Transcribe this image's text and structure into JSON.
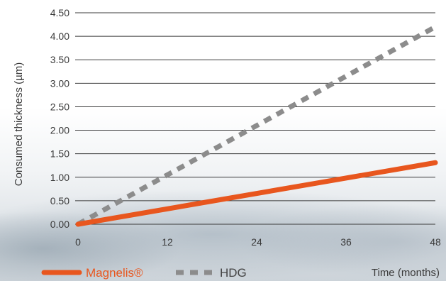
{
  "chart_data": {
    "type": "line",
    "title": "",
    "xlabel": "Time (months)",
    "ylabel": "Consumed thickness (µm)",
    "xlim": [
      0,
      48
    ],
    "ylim": [
      0,
      4.5
    ],
    "x_ticks": [
      "0",
      "12",
      "24",
      "36",
      "48"
    ],
    "y_ticks": [
      "0.00",
      "0.50",
      "1.00",
      "1.50",
      "2.00",
      "2.50",
      "3.00",
      "3.50",
      "4.00",
      "4.50"
    ],
    "grid": "horizontal",
    "legend_position": "bottom-left",
    "series": [
      {
        "name": "Magnelis®",
        "color": "#e8561e",
        "style": "solid",
        "x": [
          0,
          48
        ],
        "y": [
          0.0,
          1.31
        ]
      },
      {
        "name": "HDG",
        "color": "#8c8c8c",
        "style": "dashed",
        "x": [
          0,
          48
        ],
        "y": [
          0.0,
          4.2
        ]
      }
    ]
  }
}
